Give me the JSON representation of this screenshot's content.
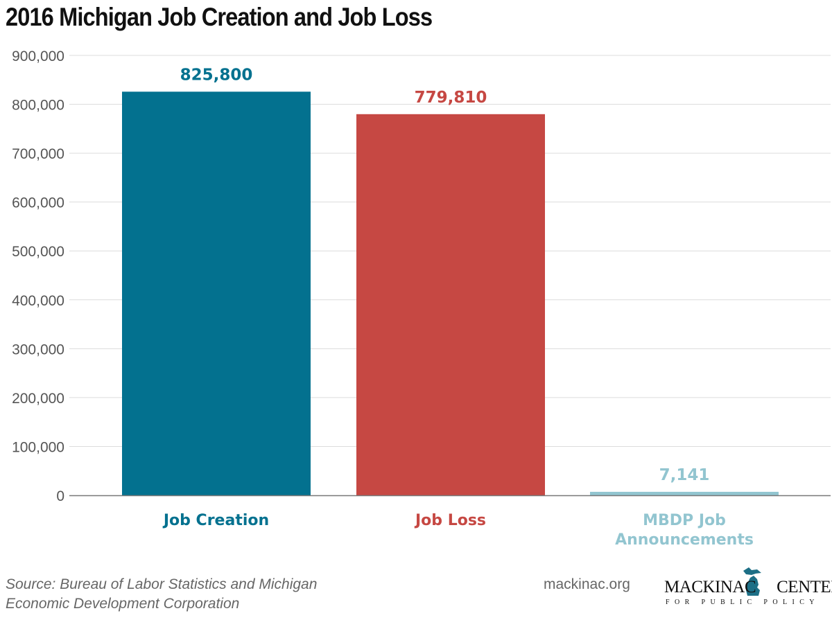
{
  "chart_data": {
    "type": "bar",
    "title": "2016 Michigan Job Creation and Job Loss",
    "categories": [
      "Job Creation",
      "Job Loss",
      "MBDP Job Announcements"
    ],
    "values": [
      825800,
      779810,
      7141
    ],
    "data_labels": [
      "825,800",
      "779,810",
      "7,141"
    ],
    "colors": [
      "#03718f",
      "#c64843",
      "#92c5d0"
    ],
    "ylim": [
      0,
      900000
    ],
    "yticks": [
      0,
      100000,
      200000,
      300000,
      400000,
      500000,
      600000,
      700000,
      800000,
      900000
    ],
    "ytick_labels": [
      "0",
      "100,000",
      "200,000",
      "300,000",
      "400,000",
      "500,000",
      "600,000",
      "700,000",
      "800,000",
      "900,000"
    ],
    "grid": true,
    "xlabel": "",
    "ylabel": ""
  },
  "footer": {
    "source": "Source: Bureau of Labor Statistics and Michigan Economic Development Corporation",
    "site": "mackinac.org",
    "logo_name_left": "MACKINAC",
    "logo_name_right": "CENTER",
    "logo_sub": "FOR PUBLIC POLICY"
  }
}
